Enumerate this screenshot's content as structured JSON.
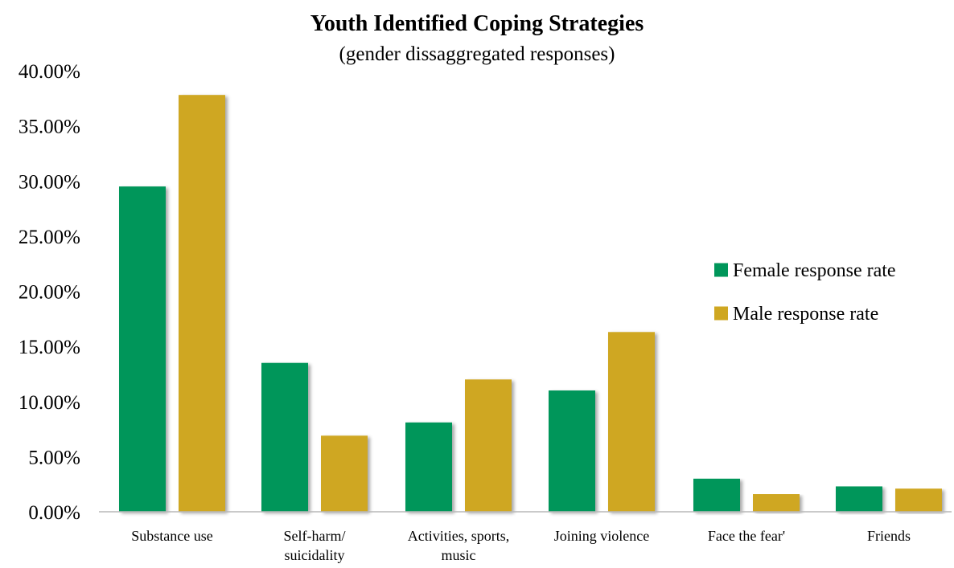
{
  "chart_data": {
    "type": "bar",
    "title": "Youth Identified Coping Strategies",
    "subtitle": "(gender dissaggregated responses)",
    "xlabel": "",
    "ylabel": "",
    "categories": [
      [
        "Substance use"
      ],
      [
        "Self-harm/",
        "suicidality"
      ],
      [
        "Activities, sports,",
        "music"
      ],
      [
        "Joining violence"
      ],
      [
        "Face the fear'"
      ],
      [
        "Friends"
      ]
    ],
    "series": [
      {
        "name": "Female response rate",
        "color": "#00965A",
        "values": [
          0.295,
          0.135,
          0.081,
          0.11,
          0.03,
          0.023
        ]
      },
      {
        "name": "Male response rate",
        "color": "#CFA721",
        "values": [
          0.378,
          0.069,
          0.12,
          0.163,
          0.016,
          0.021
        ]
      }
    ],
    "ylim": [
      0,
      0.4
    ],
    "yticks": [
      "0.00%",
      "5.00%",
      "10.00%",
      "15.00%",
      "20.00%",
      "25.00%",
      "30.00%",
      "35.00%",
      "40.00%"
    ],
    "grid": false,
    "legend_position": "right"
  }
}
